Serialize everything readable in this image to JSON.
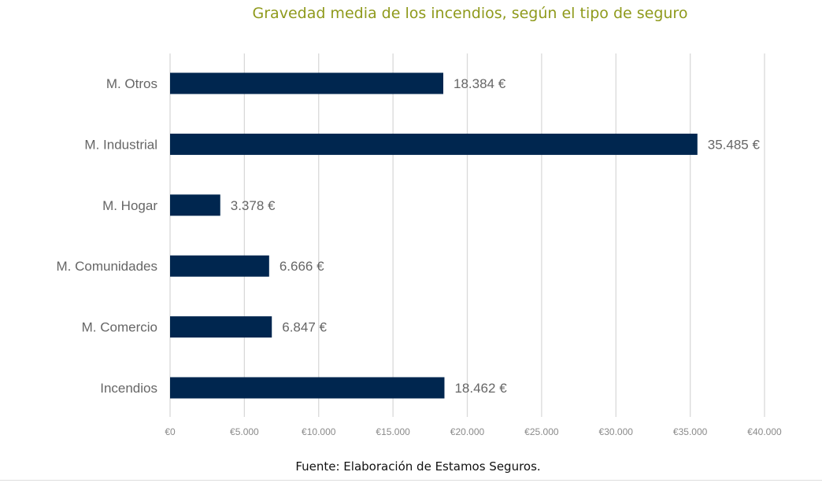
{
  "chart_data": {
    "type": "bar",
    "orientation": "horizontal",
    "title": "Gravedad media de los incendios, según el tipo de seguro",
    "categories": [
      "M. Otros",
      "M. Industrial",
      "M. Hogar",
      "M. Comunidades",
      "M. Comercio",
      "Incendios"
    ],
    "values": [
      18384,
      35485,
      3378,
      6666,
      6847,
      18462
    ],
    "data_labels": [
      "18.384 €",
      "35.485 €",
      "3.378 €",
      "6.666 €",
      "6.847 €",
      "18.462 €"
    ],
    "xlim": [
      0,
      40000
    ],
    "xticks": [
      0,
      5000,
      10000,
      15000,
      20000,
      25000,
      30000,
      35000,
      40000
    ],
    "xtick_labels": [
      "€0",
      "€5.000",
      "€10.000",
      "€15.000",
      "€20.000",
      "€25.000",
      "€30.000",
      "€35.000",
      "€40.000"
    ],
    "xlabel": "",
    "ylabel": "",
    "grid": "vertical",
    "bar_color": "#00264f"
  },
  "footer": "Fuente: Elaboración de Estamos Seguros."
}
